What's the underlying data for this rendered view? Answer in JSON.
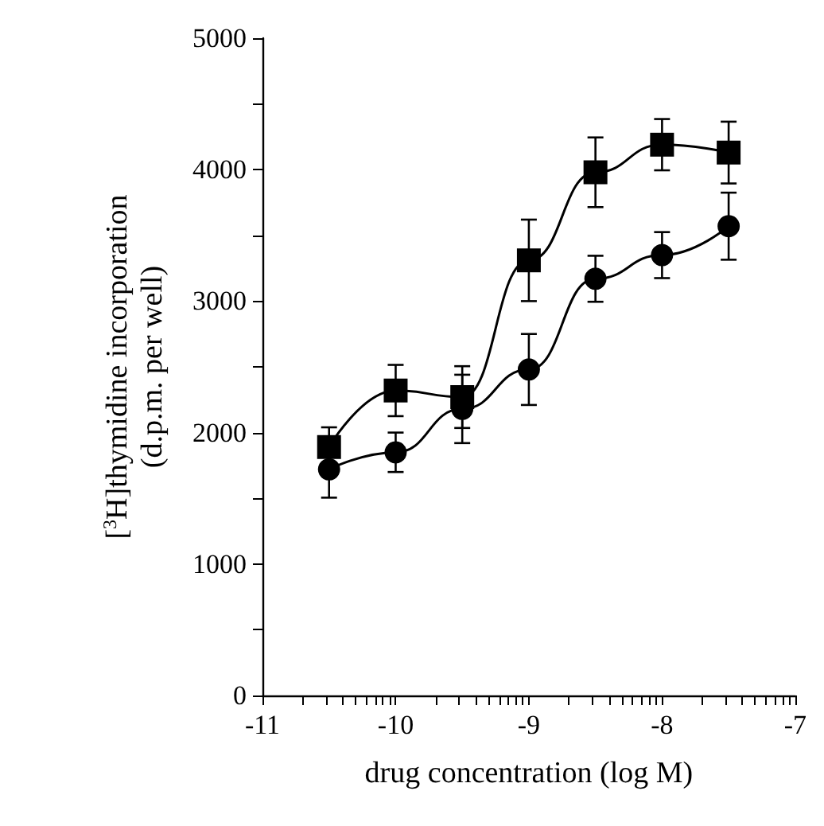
{
  "chart_data": {
    "type": "line",
    "xlabel": "drug concentration (log M)",
    "ylabel": "[$^{3}$H]thymidine incorporation\n(d.p.m. per well)",
    "x": [
      -10.5,
      -10,
      -9.5,
      -9,
      -8.5,
      -8,
      -7.5
    ],
    "series": [
      {
        "color": "#000000",
        "marker": "square",
        "values": [
          1890,
          2320,
          2270,
          3310,
          3980,
          4190,
          4130
        ],
        "errors": [
          150,
          195,
          235,
          310,
          265,
          195,
          235
        ]
      },
      {
        "color": "#000000",
        "marker": "circle",
        "values": [
          1720,
          1850,
          2180,
          2480,
          3170,
          3350,
          3570
        ],
        "errors": [
          215,
          150,
          260,
          270,
          175,
          175,
          255
        ]
      }
    ],
    "xlim": [
      -11,
      -7
    ],
    "xticks": [
      -11,
      {
        "value": -10.699,
        "label": null
      },
      {
        "value": -10.523,
        "label": null
      },
      {
        "value": -10.398,
        "label": null
      },
      {
        "value": -10.301,
        "label": null
      },
      {
        "value": -10.222,
        "label": null
      },
      {
        "value": -10.155,
        "label": null
      },
      {
        "value": -10.097,
        "label": null
      },
      {
        "value": -10.046,
        "label": null
      },
      -10,
      {
        "value": -9.699,
        "label": null
      },
      {
        "value": -9.523,
        "label": null
      },
      {
        "value": -9.398,
        "label": null
      },
      {
        "value": -9.301,
        "label": null
      },
      {
        "value": -9.222,
        "label": null
      },
      {
        "value": -9.155,
        "label": null
      },
      {
        "value": -9.097,
        "label": null
      },
      {
        "value": -9.046,
        "label": null
      },
      -9,
      {
        "value": -8.699,
        "label": null
      },
      {
        "value": -8.523,
        "label": null
      },
      {
        "value": -8.398,
        "label": null
      },
      {
        "value": -8.301,
        "label": null
      },
      {
        "value": -8.222,
        "label": null
      },
      {
        "value": -8.155,
        "label": null
      },
      {
        "value": -8.097,
        "label": null
      },
      {
        "value": -8.046,
        "label": null
      },
      -8,
      {
        "value": -7.699,
        "label": null
      },
      {
        "value": -7.523,
        "label": null
      },
      {
        "value": -7.398,
        "label": null
      },
      {
        "value": -7.301,
        "label": null
      },
      {
        "value": -7.222,
        "label": null
      },
      {
        "value": -7.155,
        "label": null
      },
      {
        "value": -7.097,
        "label": null
      },
      {
        "value": -7.046,
        "label": null
      },
      -7
    ],
    "ylim": [
      0,
      5000
    ],
    "yticks": [
      0,
      {
        "value": 500,
        "label": null
      },
      1000,
      {
        "value": 1500,
        "label": null
      },
      2000,
      {
        "value": 2500,
        "label": null
      },
      3000,
      {
        "value": 3500,
        "label": null
      },
      4000,
      {
        "value": 4500,
        "label": null
      },
      5000
    ],
    "grid": false,
    "line_style": "solid"
  }
}
